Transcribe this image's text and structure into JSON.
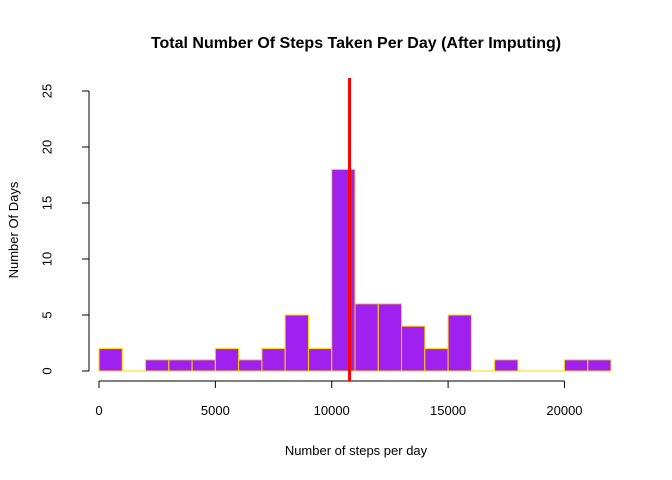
{
  "chart_data": {
    "type": "histogram",
    "title": "Total Number Of Steps Taken Per Day (After Imputing)",
    "xlabel": "Number of steps per day",
    "ylabel": "Number Of Days",
    "bin_width": 1000,
    "bins_start": [
      0,
      1000,
      2000,
      3000,
      4000,
      5000,
      6000,
      7000,
      8000,
      9000,
      10000,
      11000,
      12000,
      13000,
      14000,
      15000,
      16000,
      17000,
      18000,
      19000,
      20000,
      21000
    ],
    "counts": [
      2,
      0,
      1,
      1,
      1,
      2,
      1,
      2,
      5,
      2,
      18,
      6,
      6,
      4,
      2,
      5,
      0,
      1,
      0,
      0,
      1,
      1
    ],
    "xlim": [
      0,
      22000
    ],
    "ylim": [
      0,
      25
    ],
    "x_ticks": [
      0,
      5000,
      10000,
      15000,
      20000
    ],
    "y_ticks": [
      0,
      5,
      10,
      15,
      20,
      25
    ],
    "mean_line_x": 10766,
    "bar_fill": "#A020F0",
    "bar_border": "#FFD700",
    "mean_line_color": "#FF0000"
  }
}
